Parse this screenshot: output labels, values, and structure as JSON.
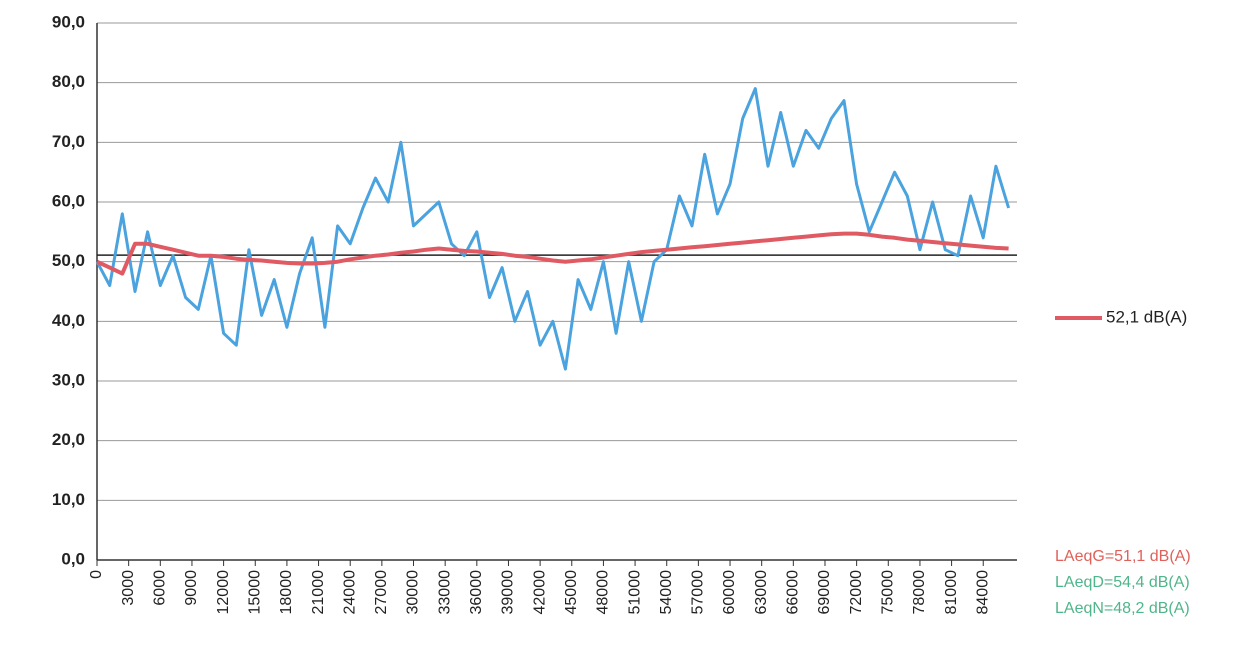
{
  "chart_data": {
    "type": "line",
    "x": [
      0,
      1200,
      2400,
      3600,
      4800,
      6000,
      7200,
      8400,
      9600,
      10800,
      12000,
      13200,
      14400,
      15600,
      16800,
      18000,
      19200,
      20400,
      21600,
      22800,
      24000,
      25200,
      26400,
      27600,
      28800,
      30000,
      31200,
      32400,
      33600,
      34800,
      36000,
      37200,
      38400,
      39600,
      40800,
      42000,
      43200,
      44400,
      45600,
      46800,
      48000,
      49200,
      50400,
      51600,
      52800,
      54000,
      55200,
      56400,
      57600,
      58800,
      60000,
      61200,
      62400,
      63600,
      64800,
      66000,
      67200,
      68400,
      69600,
      70800,
      72000,
      73200,
      74400,
      75600,
      76800,
      78000,
      79200,
      80400,
      81600,
      82800,
      84000,
      85200,
      86400
    ],
    "series": [
      {
        "color": "#4aa3df",
        "values": [
          50,
          46,
          58,
          45,
          55,
          46,
          51,
          44,
          42,
          51,
          38,
          36,
          52,
          41,
          47,
          39,
          48,
          54,
          39,
          56,
          53,
          59,
          64,
          60,
          70,
          56,
          58,
          60,
          53,
          51,
          55,
          44,
          49,
          40,
          45,
          36,
          40,
          32,
          47,
          42,
          50,
          38,
          50,
          40,
          50,
          52,
          61,
          56,
          68,
          58,
          63,
          74,
          79,
          66,
          75,
          66,
          72,
          69,
          74,
          77,
          63,
          55,
          60,
          65,
          61,
          52,
          60,
          52,
          51,
          61,
          54,
          66,
          59
        ]
      },
      {
        "name": "52,1 dB(A)",
        "color": "#e05a63",
        "values": [
          50,
          49,
          48,
          53,
          53,
          52.5,
          52,
          51.5,
          51,
          51,
          50.8,
          50.5,
          50.3,
          50.2,
          50,
          49.8,
          49.7,
          49.7,
          49.8,
          50,
          50.4,
          50.7,
          51,
          51.2,
          51.5,
          51.7,
          52,
          52.2,
          52,
          51.8,
          51.7,
          51.5,
          51.3,
          51,
          50.8,
          50.5,
          50.2,
          50,
          50.2,
          50.4,
          50.7,
          51,
          51.3,
          51.6,
          51.8,
          52,
          52.2,
          52.4,
          52.6,
          52.8,
          53,
          53.2,
          53.4,
          53.6,
          53.8,
          54,
          54.2,
          54.4,
          54.6,
          54.7,
          54.7,
          54.5,
          54.2,
          54,
          53.7,
          53.5,
          53.3,
          53.1,
          52.9,
          52.7,
          52.5,
          52.3,
          52.2
        ]
      }
    ],
    "hline": 51.1,
    "xlim": [
      0,
      87200
    ],
    "xticks": [
      0,
      3000,
      6000,
      9000,
      12000,
      15000,
      18000,
      21000,
      24000,
      27000,
      30000,
      33000,
      36000,
      39000,
      42000,
      45000,
      48000,
      51000,
      54000,
      57000,
      60000,
      63000,
      66000,
      69000,
      72000,
      75000,
      78000,
      81000,
      84000
    ],
    "ylim": [
      0,
      90
    ],
    "yticks": [
      {
        "value": 0,
        "label": "0,0"
      },
      {
        "value": 10,
        "label": "10,0"
      },
      {
        "value": 20,
        "label": "20,0"
      },
      {
        "value": 30,
        "label": "30,0"
      },
      {
        "value": 40,
        "label": "40,0"
      },
      {
        "value": 50,
        "label": "50,0"
      },
      {
        "value": 60,
        "label": "60,0"
      },
      {
        "value": 70,
        "label": "70,0"
      },
      {
        "value": 80,
        "label": "80,0"
      },
      {
        "value": 90,
        "label": "90,0"
      }
    ],
    "grid": true,
    "legend": "right",
    "annotations": [
      {
        "text": "LAeqG=51,1 dB(A)",
        "color": "#e0605a"
      },
      {
        "text": "LAeqD=54,4 dB(A)",
        "color": "#4fb58a"
      },
      {
        "text": "LAeqN=48,2 dB(A)",
        "color": "#4fb58a"
      }
    ]
  }
}
